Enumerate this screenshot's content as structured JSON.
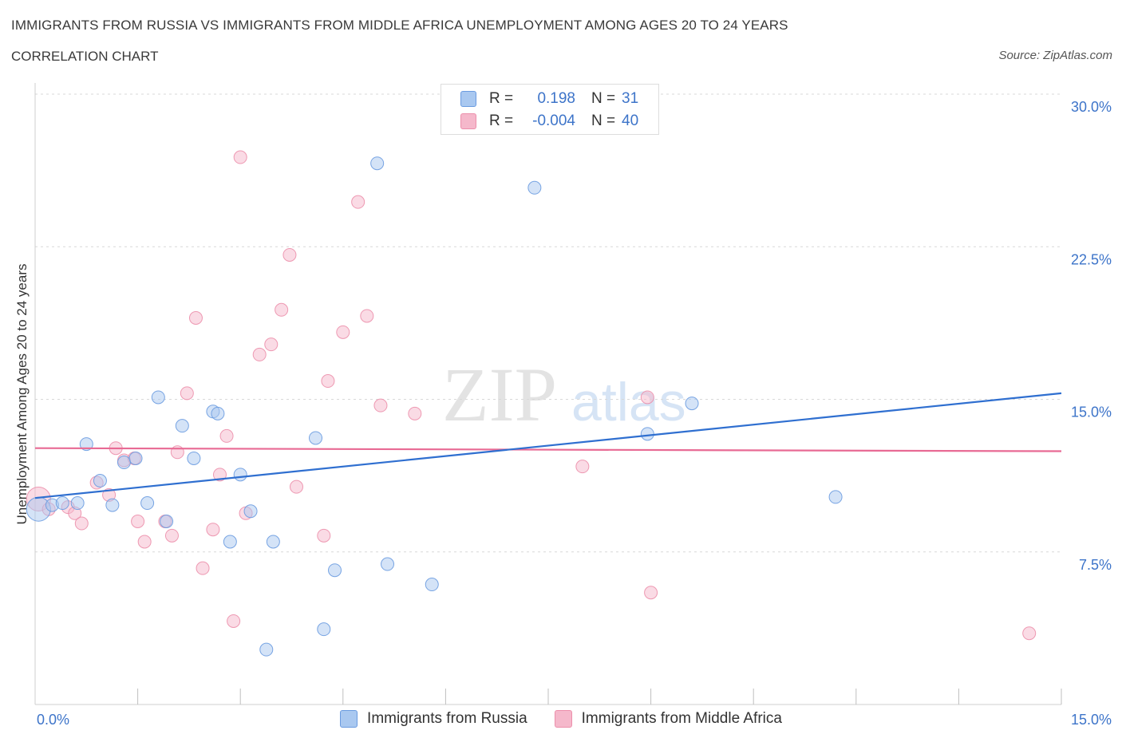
{
  "title": "IMMIGRANTS FROM RUSSIA VS IMMIGRANTS FROM MIDDLE AFRICA UNEMPLOYMENT AMONG AGES 20 TO 24 YEARS",
  "subtitle": "CORRELATION CHART",
  "source": "Source: ZipAtlas.com",
  "watermark": {
    "zip": "ZIP",
    "atlas": "atlas"
  },
  "legend": {
    "rows": [
      {
        "r_label": "R =",
        "r_value": "0.198",
        "n_label": "N =",
        "n_value": "31",
        "color": "#a9c8f0"
      },
      {
        "r_label": "R =",
        "r_value": "-0.004",
        "n_label": "N =",
        "n_value": "40",
        "color": "#f5b8cb"
      }
    ]
  },
  "bottom_legend": {
    "russia": "Immigrants from Russia",
    "africa": "Immigrants from Middle Africa"
  },
  "colors": {
    "russia_fill": "#a9c8f0",
    "russia_stroke": "#6a9be0",
    "russia_line": "#2f6fd0",
    "africa_fill": "#f5b8cb",
    "africa_stroke": "#ec8fab",
    "africa_line": "#e86a94",
    "tick_text": "#3d74c9"
  },
  "chart_data": {
    "type": "scatter",
    "title": "IMMIGRANTS FROM RUSSIA VS IMMIGRANTS FROM MIDDLE AFRICA UNEMPLOYMENT AMONG AGES 20 TO 24 YEARS",
    "xlabel": "",
    "ylabel": "Unemployment Among Ages 20 to 24 years",
    "xlim": [
      0,
      15
    ],
    "ylim": [
      0,
      30
    ],
    "x_tick_labels": [
      {
        "value": 0,
        "label": "0.0%"
      },
      {
        "value": 15,
        "label": "15.0%"
      }
    ],
    "y_tick_labels": [
      {
        "value": 7.5,
        "label": "7.5%"
      },
      {
        "value": 15,
        "label": "15.0%"
      },
      {
        "value": 22.5,
        "label": "22.5%"
      },
      {
        "value": 30,
        "label": "30.0%"
      }
    ],
    "series": [
      {
        "name": "Immigrants from Russia",
        "points": [
          [
            0.05,
            9.6
          ],
          [
            0.25,
            9.8
          ],
          [
            0.4,
            9.9
          ],
          [
            0.62,
            9.9
          ],
          [
            0.75,
            12.8
          ],
          [
            0.95,
            11.0
          ],
          [
            1.13,
            9.8
          ],
          [
            1.3,
            11.9
          ],
          [
            1.47,
            12.1
          ],
          [
            1.64,
            9.9
          ],
          [
            1.8,
            15.1
          ],
          [
            1.92,
            9.0
          ],
          [
            2.15,
            13.7
          ],
          [
            2.32,
            12.1
          ],
          [
            2.6,
            14.4
          ],
          [
            2.67,
            14.3
          ],
          [
            2.85,
            8.0
          ],
          [
            3.0,
            11.3
          ],
          [
            3.15,
            9.5
          ],
          [
            3.38,
            2.7
          ],
          [
            3.48,
            8.0
          ],
          [
            4.1,
            13.1
          ],
          [
            4.22,
            3.7
          ],
          [
            4.38,
            6.6
          ],
          [
            5.0,
            26.6
          ],
          [
            5.15,
            6.9
          ],
          [
            5.8,
            5.9
          ],
          [
            7.3,
            25.4
          ],
          [
            8.95,
            13.3
          ],
          [
            9.6,
            14.8
          ],
          [
            11.7,
            10.2
          ]
        ],
        "trend": {
          "x": [
            0,
            15
          ],
          "y": [
            10.15,
            15.3
          ]
        }
      },
      {
        "name": "Immigrants from Middle Africa",
        "points": [
          [
            0.05,
            10.1
          ],
          [
            0.2,
            9.6
          ],
          [
            0.48,
            9.7
          ],
          [
            0.58,
            9.4
          ],
          [
            0.68,
            8.9
          ],
          [
            0.9,
            10.9
          ],
          [
            1.08,
            10.3
          ],
          [
            1.18,
            12.6
          ],
          [
            1.3,
            12.0
          ],
          [
            1.45,
            12.1
          ],
          [
            1.5,
            9.0
          ],
          [
            1.6,
            8.0
          ],
          [
            1.9,
            9.0
          ],
          [
            2.0,
            8.3
          ],
          [
            2.08,
            12.4
          ],
          [
            2.22,
            15.3
          ],
          [
            2.35,
            19.0
          ],
          [
            2.45,
            6.7
          ],
          [
            2.6,
            8.6
          ],
          [
            2.7,
            11.3
          ],
          [
            2.8,
            13.2
          ],
          [
            2.9,
            4.1
          ],
          [
            3.0,
            26.9
          ],
          [
            3.08,
            9.4
          ],
          [
            3.28,
            17.2
          ],
          [
            3.45,
            17.7
          ],
          [
            3.6,
            19.4
          ],
          [
            3.72,
            22.1
          ],
          [
            3.82,
            10.7
          ],
          [
            4.22,
            8.3
          ],
          [
            4.28,
            15.9
          ],
          [
            4.5,
            18.3
          ],
          [
            4.72,
            24.7
          ],
          [
            4.85,
            19.1
          ],
          [
            5.05,
            14.7
          ],
          [
            5.55,
            14.3
          ],
          [
            8.0,
            11.7
          ],
          [
            8.95,
            15.1
          ],
          [
            9.0,
            5.5
          ],
          [
            14.53,
            3.5
          ]
        ],
        "trend": {
          "x": [
            0,
            15
          ],
          "y": [
            12.6,
            12.45
          ]
        }
      }
    ]
  }
}
